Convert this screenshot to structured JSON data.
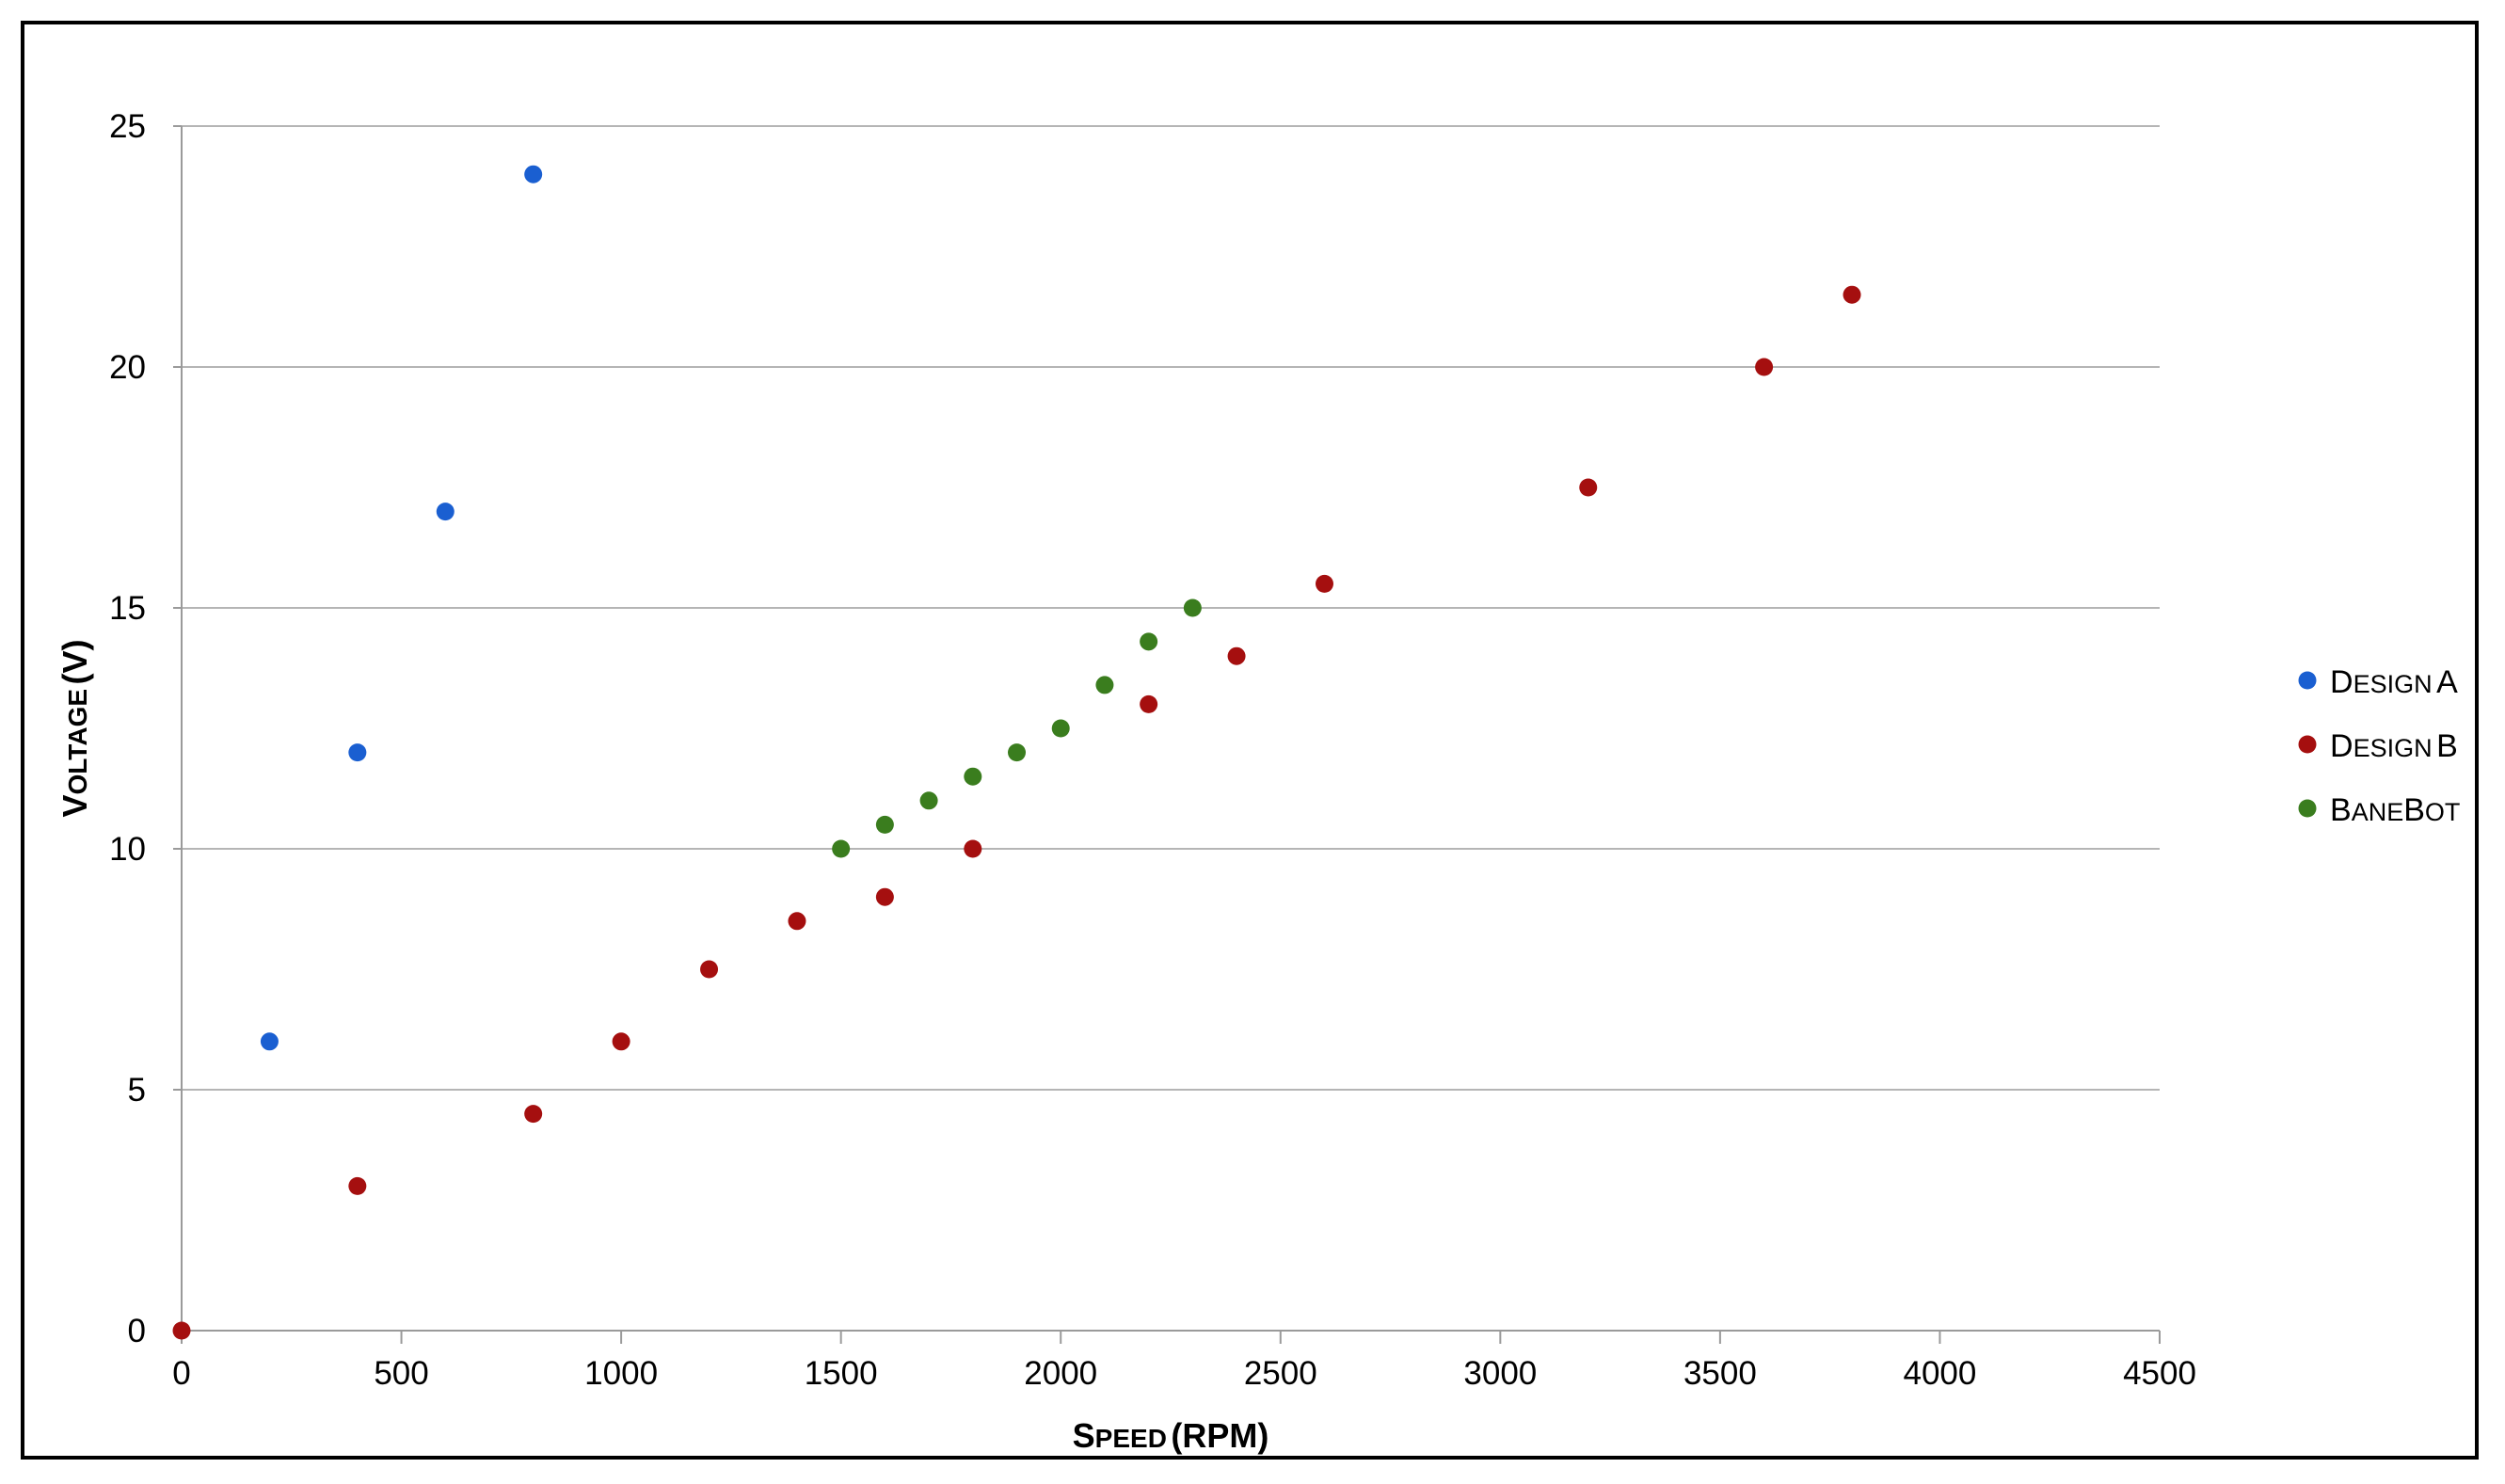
{
  "chart_data": {
    "type": "scatter",
    "title": "",
    "xlabel": "Speed (RPM)",
    "ylabel": "Voltage (V)",
    "xlim": [
      0,
      4500
    ],
    "ylim": [
      0,
      25
    ],
    "xticks": [
      0,
      500,
      1000,
      1500,
      2000,
      2500,
      3000,
      3500,
      4000,
      4500
    ],
    "yticks": [
      0,
      5,
      10,
      15,
      20,
      25
    ],
    "grid": "horizontal",
    "legend": "right",
    "series": [
      {
        "name": "Design A",
        "color": "#1a5fd1",
        "points": [
          [
            200,
            6
          ],
          [
            400,
            12
          ],
          [
            600,
            17
          ],
          [
            800,
            24
          ]
        ]
      },
      {
        "name": "Design B",
        "color": "#a50f0f",
        "points": [
          [
            0,
            0
          ],
          [
            400,
            3
          ],
          [
            800,
            4.5
          ],
          [
            1000,
            6
          ],
          [
            1200,
            7.5
          ],
          [
            1400,
            8.5
          ],
          [
            1600,
            9
          ],
          [
            1800,
            10
          ],
          [
            2200,
            13
          ],
          [
            2400,
            14
          ],
          [
            2600,
            15.5
          ],
          [
            3200,
            17.5
          ],
          [
            3600,
            20
          ],
          [
            3800,
            21.5
          ]
        ]
      },
      {
        "name": "BaneBot",
        "color": "#3a7d1e",
        "points": [
          [
            1500,
            10
          ],
          [
            1600,
            10.5
          ],
          [
            1700,
            11
          ],
          [
            1800,
            11.5
          ],
          [
            1900,
            12
          ],
          [
            2000,
            12.5
          ],
          [
            2100,
            13.4
          ],
          [
            2200,
            14.3
          ],
          [
            2300,
            15
          ]
        ]
      }
    ]
  }
}
